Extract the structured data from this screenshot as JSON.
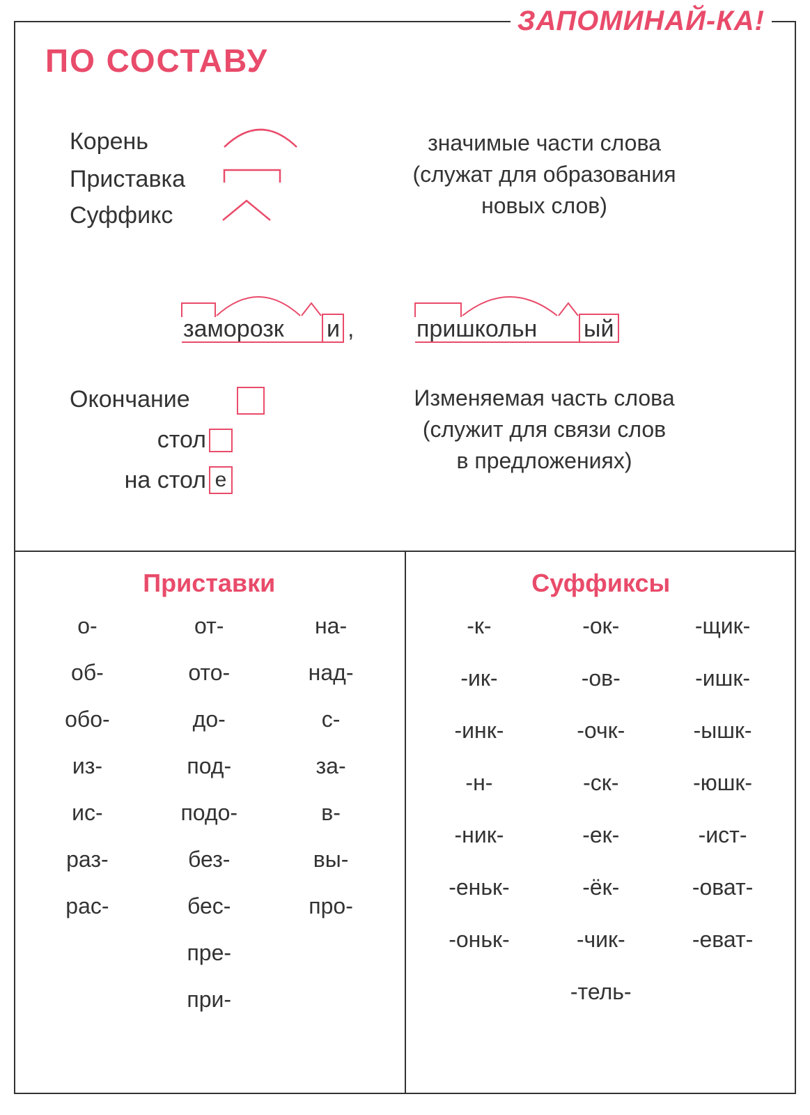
{
  "colors": {
    "accent": "#e94b6a",
    "text": "#333333",
    "border": "#333333",
    "background": "#ffffff"
  },
  "typography": {
    "title_fontsize": 46,
    "badge_fontsize": 40,
    "body_fontsize": 34,
    "desc_fontsize": 32,
    "table_head_fontsize": 36,
    "table_cell_fontsize": 32
  },
  "badge": {
    "part1": "ЗАПОМИНАЙ",
    "sep": "-",
    "part2": "КА!"
  },
  "title": "ПО  СОСТАВУ",
  "parts": {
    "root_label": "Корень",
    "prefix_label": "Приставка",
    "suffix_label": "Суффикс",
    "ending_label": "Окончание",
    "desc_parts_line1": "значимые части слова",
    "desc_parts_line2": "(служат для образования",
    "desc_parts_line3": "новых слов)",
    "desc_ending_line1": "Изменяемая часть слова",
    "desc_ending_line2": "(служит для связи слов",
    "desc_ending_line3": "в предложениях)"
  },
  "examples": {
    "word1": {
      "prefix": "за",
      "root": "мороз",
      "suffix": "к",
      "ending": "и",
      "trailing": ","
    },
    "word2": {
      "prefix": "при",
      "root": "школь",
      "suffix": "н",
      "ending": "ый",
      "trailing": ""
    }
  },
  "ending_examples": {
    "line1_word": "стол",
    "line1_ending": "",
    "line2_pre": "на ",
    "line2_word": "стол",
    "line2_ending": "е"
  },
  "tables": {
    "prefixes": {
      "title": "Приставки",
      "columns": 3,
      "rows": [
        [
          "о-",
          "от-",
          "на-"
        ],
        [
          "об-",
          "ото-",
          "над-"
        ],
        [
          "обо-",
          "до-",
          "с-"
        ],
        [
          "из-",
          "под-",
          "за-"
        ],
        [
          "ис-",
          "подо-",
          "в-"
        ],
        [
          "раз-",
          "без-",
          "вы-"
        ],
        [
          "рас-",
          "бес-",
          "про-"
        ],
        [
          "",
          "пре-",
          ""
        ],
        [
          "",
          "при-",
          ""
        ]
      ]
    },
    "suffixes": {
      "title": "Суффиксы",
      "columns": 3,
      "rows": [
        [
          "-к-",
          "-ок-",
          "-щик-"
        ],
        [
          "-ик-",
          "-ов-",
          "-ишк-"
        ],
        [
          "-инк-",
          "-очк-",
          "-ышк-"
        ],
        [
          "-н-",
          "-ск-",
          "-юшк-"
        ],
        [
          "-ник-",
          "-ек-",
          "-ист-"
        ],
        [
          "-еньк-",
          "-ёк-",
          "-оват-"
        ],
        [
          "-оньк-",
          "-чик-",
          "-еват-"
        ],
        [
          "",
          "-тель-",
          ""
        ]
      ]
    }
  }
}
